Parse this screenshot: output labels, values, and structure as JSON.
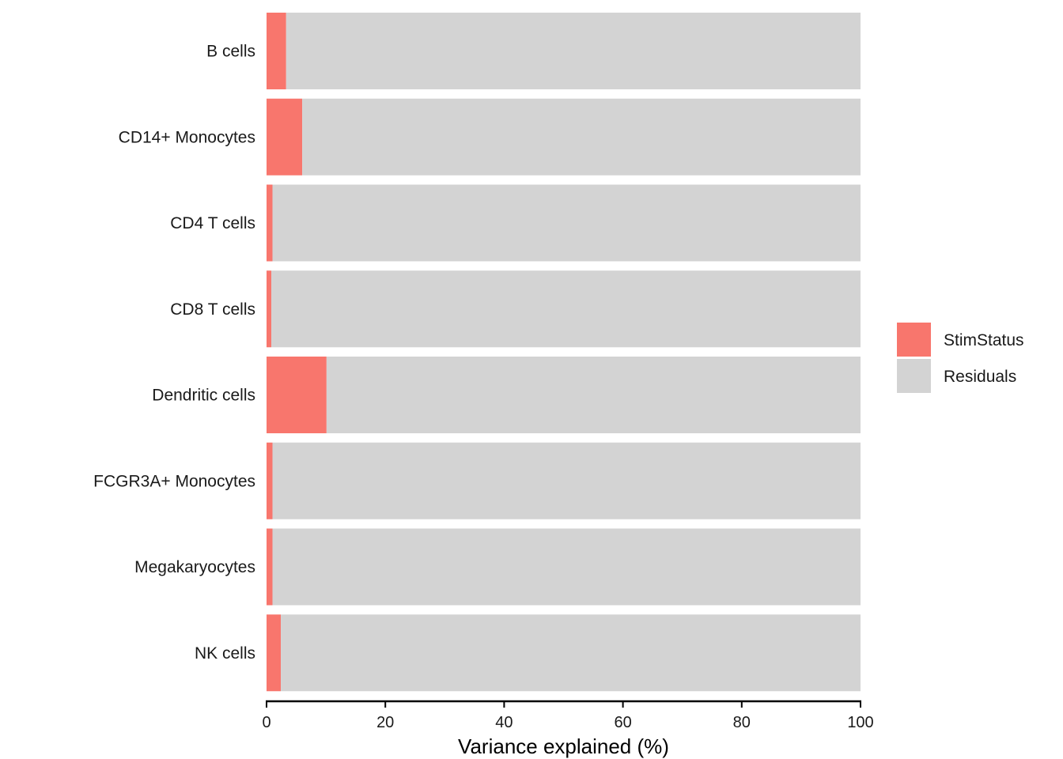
{
  "chart_data": {
    "type": "bar",
    "orientation": "horizontal",
    "stacked": true,
    "categories": [
      "B cells",
      "CD14+ Monocytes",
      "CD4 T cells",
      "CD8 T cells",
      "Dendritic cells",
      "FCGR3A+ Monocytes",
      "Megakaryocytes",
      "NK cells"
    ],
    "series": [
      {
        "name": "StimStatus",
        "color": "#F8766D",
        "values": [
          3.3,
          6.0,
          1.0,
          0.8,
          10.1,
          1.0,
          1.0,
          2.4
        ]
      },
      {
        "name": "Residuals",
        "color": "#D3D3D3",
        "values": [
          96.7,
          94.0,
          99.0,
          99.2,
          89.9,
          99.0,
          99.0,
          97.6
        ]
      }
    ],
    "xlabel": "Variance explained (%)",
    "ylabel": "",
    "title": "",
    "xlim": [
      0,
      100
    ],
    "xticks": [
      "0",
      "20",
      "40",
      "60",
      "80",
      "100"
    ],
    "grid": false,
    "legend": "right"
  }
}
